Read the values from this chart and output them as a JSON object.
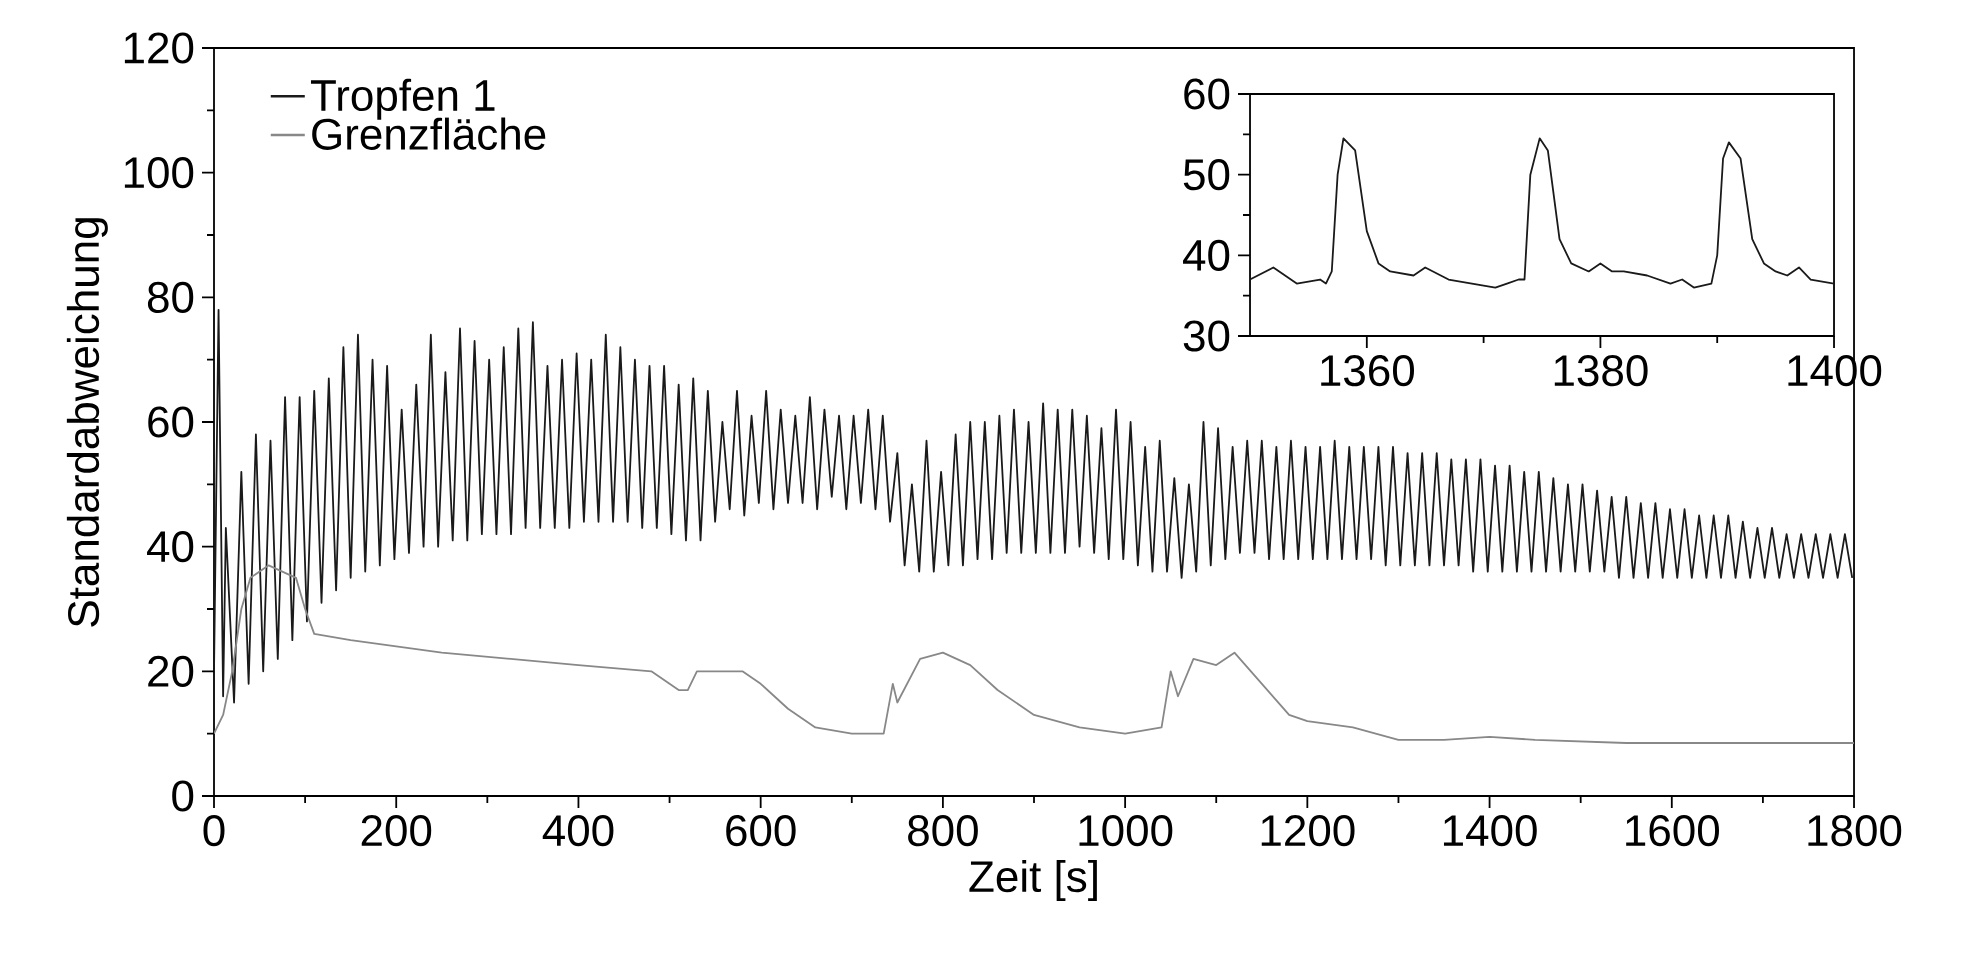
{
  "chart_data": [
    {
      "type": "line",
      "xlabel": "Zeit [s]",
      "ylabel": "Standardabweichung",
      "xlim": [
        0,
        1800
      ],
      "ylim": [
        0,
        120
      ],
      "xticks": [
        0,
        200,
        400,
        600,
        800,
        1000,
        1200,
        1400,
        1600,
        1800
      ],
      "yticks": [
        0,
        20,
        40,
        60,
        80,
        100,
        120
      ],
      "legend": "top left",
      "series": [
        {
          "name": "Tropfen 1",
          "color": "#1a1a1a",
          "x": [
            0,
            5,
            10,
            13,
            22,
            30,
            38,
            46,
            54,
            62,
            70,
            78,
            86,
            94,
            102,
            110,
            118,
            126,
            134,
            142,
            150,
            158,
            166,
            174,
            182,
            190,
            198,
            206,
            214,
            222,
            230,
            238,
            246,
            254,
            262,
            270,
            278,
            286,
            294,
            302,
            310,
            318,
            326,
            334,
            342,
            350,
            358,
            366,
            374,
            382,
            390,
            398,
            406,
            414,
            422,
            430,
            438,
            446,
            454,
            462,
            470,
            478,
            486,
            494,
            502,
            510,
            518,
            526,
            534,
            542,
            550,
            558,
            566,
            574,
            582,
            590,
            598,
            606,
            614,
            622,
            630,
            638,
            646,
            654,
            662,
            670,
            678,
            686,
            694,
            702,
            710,
            718,
            726,
            734,
            742,
            750,
            758,
            766,
            774,
            782,
            790,
            798,
            806,
            814,
            822,
            830,
            838,
            846,
            854,
            862,
            870,
            878,
            886,
            894,
            902,
            910,
            918,
            926,
            934,
            942,
            950,
            958,
            966,
            974,
            982,
            990,
            998,
            1006,
            1014,
            1022,
            1030,
            1038,
            1046,
            1054,
            1062,
            1070,
            1078,
            1086,
            1094,
            1102,
            1110,
            1118,
            1126,
            1134,
            1142,
            1150,
            1158,
            1166,
            1174,
            1182,
            1190,
            1198,
            1206,
            1214,
            1222,
            1230,
            1238,
            1246,
            1254,
            1262,
            1270,
            1278,
            1286,
            1294,
            1302,
            1310,
            1318,
            1326,
            1334,
            1342,
            1350,
            1358,
            1366,
            1374,
            1382,
            1390,
            1398,
            1406,
            1414,
            1422,
            1430,
            1438,
            1446,
            1454,
            1462,
            1470,
            1478,
            1486,
            1494,
            1502,
            1510,
            1518,
            1526,
            1534,
            1542,
            1550,
            1558,
            1566,
            1574,
            1582,
            1590,
            1598,
            1606,
            1614,
            1622,
            1630,
            1638,
            1646,
            1654,
            1662,
            1670,
            1678,
            1686,
            1694,
            1702,
            1710,
            1718,
            1726,
            1734,
            1742,
            1750,
            1758,
            1766,
            1774,
            1782,
            1790,
            1798
          ],
          "values": [
            20,
            78,
            16,
            43,
            15,
            52,
            18,
            58,
            20,
            57,
            22,
            64,
            25,
            64,
            28,
            65,
            31,
            67,
            33,
            72,
            35,
            74,
            36,
            70,
            37,
            69,
            38,
            62,
            39,
            66,
            40,
            74,
            40,
            68,
            41,
            75,
            41,
            73,
            42,
            70,
            42,
            72,
            42,
            75,
            43,
            76,
            43,
            69,
            43,
            70,
            43,
            71,
            44,
            70,
            44,
            74,
            44,
            72,
            44,
            70,
            43,
            69,
            43,
            69,
            42,
            66,
            41,
            67,
            41,
            65,
            44,
            60,
            46,
            65,
            45,
            61,
            47,
            65,
            46,
            62,
            47,
            61,
            47,
            64,
            46,
            62,
            48,
            61,
            46,
            61,
            47,
            62,
            46,
            61,
            44,
            55,
            37,
            50,
            36,
            57,
            36,
            52,
            37,
            58,
            37,
            60,
            38,
            60,
            38,
            61,
            39,
            62,
            39,
            60,
            39,
            63,
            39,
            62,
            39,
            62,
            40,
            61,
            39,
            59,
            38,
            62,
            38,
            60,
            37,
            56,
            36,
            57,
            36,
            51,
            35,
            50,
            36,
            60,
            37,
            59,
            38,
            56,
            39,
            57,
            39,
            57,
            38,
            56,
            38,
            57,
            38,
            56,
            38,
            56,
            38,
            57,
            38,
            56,
            38,
            56,
            38,
            56,
            37,
            56,
            37,
            55,
            37,
            55,
            37,
            55,
            37,
            54,
            37,
            54,
            36,
            54,
            36,
            53,
            36,
            53,
            36,
            52,
            36,
            52,
            36,
            51,
            36,
            50,
            36,
            50,
            36,
            49,
            36,
            48,
            35,
            48,
            35,
            47,
            35,
            47,
            35,
            46,
            35,
            46,
            35,
            45,
            35,
            45,
            35,
            45,
            35,
            44,
            35,
            43,
            35,
            43,
            35,
            42,
            35,
            42,
            35,
            42,
            35,
            42,
            35,
            42,
            35
          ]
        },
        {
          "name": "Grenzfläche",
          "color": "#888888",
          "x": [
            0,
            10,
            20,
            30,
            40,
            60,
            90,
            100,
            110,
            150,
            250,
            400,
            480,
            510,
            520,
            530,
            580,
            600,
            630,
            660,
            700,
            735,
            745,
            750,
            775,
            800,
            830,
            860,
            900,
            950,
            1000,
            1040,
            1050,
            1058,
            1075,
            1100,
            1120,
            1150,
            1180,
            1200,
            1250,
            1300,
            1350,
            1400,
            1450,
            1550,
            1800
          ],
          "values": [
            10,
            13,
            20,
            30,
            35,
            37,
            35,
            30,
            26,
            25,
            23,
            21,
            20,
            17,
            17,
            20,
            20,
            18,
            14,
            11,
            10,
            10,
            18,
            15,
            22,
            23,
            21,
            17,
            13,
            11,
            10,
            11,
            20,
            16,
            22,
            21,
            23,
            18,
            13,
            12,
            11,
            9,
            9,
            9.5,
            9,
            8.5,
            8.5
          ]
        }
      ]
    },
    {
      "type": "line",
      "xlim": [
        1350,
        1400
      ],
      "ylim": [
        30,
        60
      ],
      "xticks": [
        1360,
        1380,
        1400
      ],
      "yticks": [
        30,
        40,
        50,
        60
      ],
      "series": [
        {
          "color": "#1a1a1a",
          "x": [
            1350,
            1352,
            1354,
            1356,
            1356.5,
            1357,
            1357.5,
            1358,
            1359,
            1360,
            1361,
            1362,
            1364,
            1365,
            1367,
            1369,
            1371,
            1372,
            1373,
            1373.5,
            1374,
            1374.8,
            1375.5,
            1376.5,
            1377.5,
            1379,
            1380,
            1381,
            1382,
            1384,
            1386,
            1387,
            1388,
            1389.5,
            1390,
            1390.5,
            1391,
            1392,
            1393,
            1394,
            1395,
            1396,
            1397,
            1398,
            1400
          ],
          "values": [
            37,
            38.5,
            36.5,
            37,
            36.5,
            38,
            50,
            54.5,
            53,
            43,
            39,
            38,
            37.5,
            38.5,
            37,
            36.5,
            36,
            36.5,
            37,
            37,
            50,
            54.5,
            53,
            42,
            39,
            38,
            39,
            38,
            38,
            37.5,
            36.5,
            37,
            36,
            36.5,
            40,
            52,
            54,
            52,
            42,
            39,
            38,
            37.5,
            38.5,
            37,
            36.5
          ]
        }
      ]
    }
  ]
}
